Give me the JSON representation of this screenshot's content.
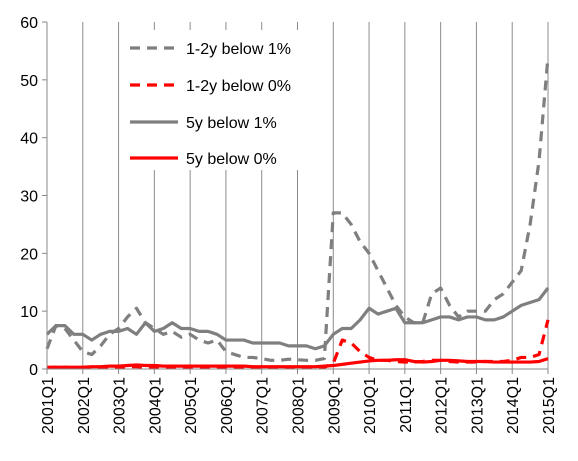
{
  "chart_data": {
    "type": "line",
    "title": "",
    "xlabel": "",
    "ylabel": "",
    "ylim": [
      0,
      60
    ],
    "yticks": [
      0,
      10,
      20,
      30,
      40,
      50,
      60
    ],
    "xticks": [
      "2001Q1",
      "2002Q1",
      "2003Q1",
      "2004Q1",
      "2005Q1",
      "2006Q1",
      "2007Q1",
      "2008Q1",
      "2009Q1",
      "2010Q1",
      "2011Q1",
      "2012Q1",
      "2013Q1",
      "2014Q1",
      "2015Q1"
    ],
    "grid": "vertical",
    "legend_position": "top-left",
    "x": [
      "2001Q1",
      "2001Q2",
      "2001Q3",
      "2001Q4",
      "2002Q1",
      "2002Q2",
      "2002Q3",
      "2002Q4",
      "2003Q1",
      "2003Q2",
      "2003Q3",
      "2003Q4",
      "2004Q1",
      "2004Q2",
      "2004Q3",
      "2004Q4",
      "2005Q1",
      "2005Q2",
      "2005Q3",
      "2005Q4",
      "2006Q1",
      "2006Q2",
      "2006Q3",
      "2006Q4",
      "2007Q1",
      "2007Q2",
      "2007Q3",
      "2007Q4",
      "2008Q1",
      "2008Q2",
      "2008Q3",
      "2008Q4",
      "2009Q1",
      "2009Q2",
      "2009Q3",
      "2009Q4",
      "2010Q1",
      "2010Q2",
      "2010Q3",
      "2010Q4",
      "2011Q1",
      "2011Q2",
      "2011Q3",
      "2011Q4",
      "2012Q1",
      "2012Q2",
      "2012Q3",
      "2012Q4",
      "2013Q1",
      "2013Q2",
      "2013Q3",
      "2013Q4",
      "2014Q1",
      "2014Q2",
      "2014Q3",
      "2014Q4",
      "2015Q1"
    ],
    "series": [
      {
        "name": "1-2y below 1%",
        "color": "#7f7f7f",
        "style": "dashed",
        "values": [
          3.5,
          7.5,
          7,
          5,
          3,
          2.5,
          4,
          6,
          7,
          9,
          10.5,
          8,
          7,
          6,
          6.5,
          5.5,
          6,
          5,
          4.5,
          5,
          3,
          2.5,
          2,
          2,
          1.8,
          1.5,
          1.5,
          1.7,
          1.6,
          1.5,
          1.5,
          1.8,
          27,
          27,
          25,
          22,
          20,
          17,
          14,
          11,
          9,
          8,
          8,
          13,
          14,
          11,
          9,
          10,
          10,
          10,
          12,
          13,
          15,
          17,
          25,
          36,
          54
        ]
      },
      {
        "name": "1-2y below 0%",
        "color": "#ff0000",
        "style": "dashed",
        "values": [
          0.2,
          0.3,
          0.3,
          0.2,
          0.2,
          0.2,
          0.3,
          0.3,
          0.3,
          0.4,
          0.4,
          0.3,
          0.3,
          0.3,
          0.3,
          0.2,
          0.2,
          0.2,
          0.2,
          0.2,
          0.2,
          0.2,
          0.2,
          0.2,
          0.2,
          0.2,
          0.2,
          0.2,
          0.2,
          0.2,
          0.2,
          0.3,
          1,
          5,
          4.5,
          3,
          2,
          1.5,
          1.5,
          1.3,
          1.2,
          1.2,
          1.3,
          1.5,
          1.5,
          1.3,
          1.2,
          1.2,
          1.2,
          1.3,
          1.3,
          1.3,
          1.5,
          2,
          2,
          2.5,
          8.5
        ]
      },
      {
        "name": "5y below 1%",
        "color": "#7f7f7f",
        "style": "solid",
        "values": [
          6,
          7.5,
          7.5,
          6,
          6,
          5,
          6,
          6.5,
          6.5,
          7,
          6,
          8,
          6.5,
          7,
          8,
          7,
          7,
          6.5,
          6.5,
          6,
          5,
          5,
          5,
          4.5,
          4.5,
          4.5,
          4.5,
          4,
          4,
          4,
          3.5,
          4,
          6,
          7,
          7,
          8.5,
          10.5,
          9.5,
          10,
          10.5,
          8,
          8,
          8,
          8.5,
          9,
          9,
          8.5,
          9,
          9,
          8.5,
          8.5,
          9,
          10,
          11,
          11.5,
          12,
          14
        ]
      },
      {
        "name": "5y below 0%",
        "color": "#ff0000",
        "style": "solid",
        "values": [
          0.3,
          0.3,
          0.3,
          0.3,
          0.3,
          0.4,
          0.4,
          0.5,
          0.5,
          0.6,
          0.7,
          0.6,
          0.6,
          0.5,
          0.5,
          0.5,
          0.5,
          0.5,
          0.5,
          0.5,
          0.5,
          0.5,
          0.5,
          0.4,
          0.4,
          0.4,
          0.4,
          0.4,
          0.4,
          0.4,
          0.4,
          0.5,
          0.6,
          0.8,
          1,
          1.2,
          1.4,
          1.5,
          1.5,
          1.6,
          1.6,
          1.3,
          1.2,
          1.3,
          1.5,
          1.5,
          1.4,
          1.3,
          1.3,
          1.3,
          1.2,
          1.2,
          1.2,
          1.2,
          1.2,
          1.3,
          1.8
        ]
      }
    ]
  }
}
